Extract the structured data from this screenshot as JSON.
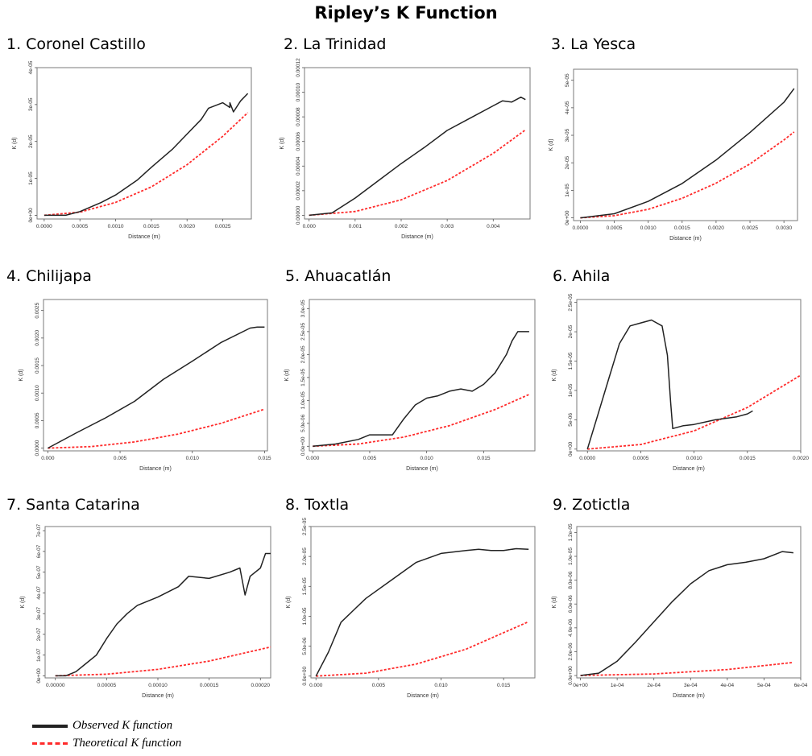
{
  "figure_title": "Ripley’s K Function",
  "legend": {
    "observed": "Observed K function",
    "theoretical": "Theoretical K function",
    "observed_color": "#222222",
    "theoretical_color": "#ff2b2b"
  },
  "chart_data": [
    {
      "type": "line",
      "title": "1. Coronel Castillo",
      "xlabel": "Distance (m)",
      "ylabel": "K (d)",
      "xlim": [
        -0.0001,
        0.0029
      ],
      "ylim": [
        -1e-06,
        4e-05
      ],
      "xticks": [
        0,
        0.0005,
        0.001,
        0.0015,
        0.002,
        0.0025
      ],
      "xtick_labels": [
        "0.0000",
        "0.0005",
        "0.0010",
        "0.0015",
        "0.0020",
        "0.0025"
      ],
      "yticks": [
        0,
        1e-05,
        2e-05,
        3e-05,
        4e-05
      ],
      "ytick_labels": [
        "0e+00",
        "1e-05",
        "2e-05",
        "3e-05",
        "4e-05"
      ],
      "series": [
        {
          "name": "Observed K function",
          "x": [
            0,
            0.0003,
            0.0005,
            0.0008,
            0.001,
            0.0013,
            0.0015,
            0.0018,
            0.002,
            0.0022,
            0.0023,
            0.0025,
            0.0026,
            0.0026,
            0.00265,
            0.00275,
            0.00285
          ],
          "y": [
            0,
            0,
            1e-06,
            3.5e-06,
            5.5e-06,
            9.5e-06,
            1.3e-05,
            1.8e-05,
            2.2e-05,
            2.6e-05,
            2.9e-05,
            3.05e-05,
            2.92e-05,
            3.05e-05,
            2.8e-05,
            3.1e-05,
            3.3e-05
          ]
        },
        {
          "name": "Theoretical K function",
          "x": [
            0,
            0.0005,
            0.001,
            0.0015,
            0.002,
            0.0025,
            0.00285
          ],
          "y": [
            0,
            8.5e-07,
            3.5e-06,
            7.7e-06,
            1.37e-05,
            2.14e-05,
            2.78e-05
          ]
        }
      ]
    },
    {
      "type": "line",
      "title": "2. La Trinidad",
      "xlabel": "Distance (m)",
      "ylabel": "K (d)",
      "xlim": [
        -0.0001,
        0.0048
      ],
      "ylim": [
        -3e-06,
        0.00012
      ],
      "xticks": [
        0,
        0.001,
        0.002,
        0.003,
        0.004
      ],
      "xtick_labels": [
        "0.000",
        "0.001",
        "0.002",
        "0.003",
        "0.004"
      ],
      "yticks": [
        0,
        2e-05,
        4e-05,
        6e-05,
        8e-05,
        0.0001,
        0.00012
      ],
      "ytick_labels": [
        "0.00000",
        "0.00002",
        "0.00004",
        "0.00006",
        "0.00008",
        "0.00010",
        "0.00012"
      ],
      "series": [
        {
          "name": "Observed K function",
          "x": [
            0,
            0.0005,
            0.001,
            0.0015,
            0.002,
            0.0025,
            0.003,
            0.0035,
            0.004,
            0.0042,
            0.0044,
            0.0046,
            0.0047
          ],
          "y": [
            0,
            2e-06,
            1.4e-05,
            2.8e-05,
            4.2e-05,
            5.5e-05,
            6.9e-05,
            7.9e-05,
            8.9e-05,
            9.3e-05,
            9.2e-05,
            9.6e-05,
            9.4e-05
          ]
        },
        {
          "name": "Theoretical K function",
          "x": [
            0,
            0.001,
            0.002,
            0.003,
            0.004,
            0.0047
          ],
          "y": [
            0,
            3.1e-06,
            1.26e-05,
            2.83e-05,
            5.03e-05,
            6.94e-05
          ]
        }
      ]
    },
    {
      "type": "line",
      "title": "3. La Yesca",
      "xlabel": "Distance (m)",
      "ylabel": "K (d)",
      "xlim": [
        -0.0001,
        0.0032
      ],
      "ylim": [
        -1e-06,
        5.4e-05
      ],
      "xticks": [
        0,
        0.0005,
        0.001,
        0.0015,
        0.002,
        0.0025,
        0.003
      ],
      "xtick_labels": [
        "0.0000",
        "0.0005",
        "0.0010",
        "0.0015",
        "0.0020",
        "0.0025",
        "0.0030"
      ],
      "yticks": [
        0,
        1e-05,
        2e-05,
        3e-05,
        4e-05,
        5e-05
      ],
      "ytick_labels": [
        "0e+00",
        "1e-05",
        "2e-05",
        "3e-05",
        "4e-05",
        "5e-05"
      ],
      "series": [
        {
          "name": "Observed K function",
          "x": [
            0,
            0.0005,
            0.001,
            0.0015,
            0.002,
            0.0025,
            0.003,
            0.00315
          ],
          "y": [
            0,
            1.5e-06,
            6e-06,
            1.25e-05,
            2.1e-05,
            3.1e-05,
            4.2e-05,
            4.7e-05
          ]
        },
        {
          "name": "Theoretical K function",
          "x": [
            0,
            0.0005,
            0.001,
            0.0015,
            0.002,
            0.0025,
            0.003,
            0.00315
          ],
          "y": [
            0,
            7.9e-07,
            3.1e-06,
            7.1e-06,
            1.26e-05,
            1.96e-05,
            2.83e-05,
            3.12e-05
          ]
        }
      ]
    },
    {
      "type": "line",
      "title": "4. Chilijapa",
      "xlabel": "Distance (m)",
      "ylabel": "K (d)",
      "xlim": [
        -0.0003,
        0.0152
      ],
      "ylim": [
        -5e-05,
        0.0027
      ],
      "xticks": [
        0,
        0.005,
        0.01,
        0.015
      ],
      "xtick_labels": [
        "0.000",
        "0.005",
        "0.010",
        "0.015"
      ],
      "yticks": [
        0,
        0.0005,
        0.001,
        0.0015,
        0.002,
        0.0025
      ],
      "ytick_labels": [
        "0.0000",
        "0.0005",
        "0.0010",
        "0.0015",
        "0.0020",
        "0.0025"
      ],
      "series": [
        {
          "name": "Observed K function",
          "x": [
            0,
            0.002,
            0.004,
            0.006,
            0.008,
            0.01,
            0.012,
            0.014,
            0.0145,
            0.015
          ],
          "y": [
            0,
            0.00028,
            0.00055,
            0.00085,
            0.00125,
            0.00158,
            0.00192,
            0.00218,
            0.0022,
            0.0022
          ]
        },
        {
          "name": "Theoretical K function",
          "x": [
            0,
            0.003,
            0.006,
            0.009,
            0.012,
            0.015
          ],
          "y": [
            0,
            2.8e-05,
            0.000113,
            0.000254,
            0.000452,
            0.000707
          ]
        }
      ]
    },
    {
      "type": "line",
      "title": "5. Ahuacatlán",
      "xlabel": "Distance (m)",
      "ylabel": "K (d)",
      "xlim": [
        -0.0003,
        0.0195
      ],
      "ylim": [
        -1e-06,
        3.2e-05
      ],
      "xticks": [
        0,
        0.005,
        0.01,
        0.015
      ],
      "xtick_labels": [
        "0.000",
        "0.005",
        "0.010",
        "0.015"
      ],
      "yticks": [
        0,
        5e-06,
        1e-05,
        1.5e-05,
        2e-05,
        2.5e-05,
        3e-05
      ],
      "ytick_labels": [
        "0.0e+00",
        "5.0e-06",
        "1.0e-05",
        "1.5e-05",
        "2.0e-05",
        "2.5e-05",
        "3.0e-05"
      ],
      "series": [
        {
          "name": "Observed K function",
          "x": [
            0,
            0.002,
            0.004,
            0.005,
            0.007,
            0.008,
            0.009,
            0.01,
            0.011,
            0.012,
            0.013,
            0.014,
            0.015,
            0.016,
            0.017,
            0.0175,
            0.018,
            0.019
          ],
          "y": [
            0,
            5e-07,
            1.5e-06,
            2.5e-06,
            2.5e-06,
            6e-06,
            9e-06,
            1.05e-05,
            1.1e-05,
            1.2e-05,
            1.25e-05,
            1.2e-05,
            1.35e-05,
            1.6e-05,
            2e-05,
            2.3e-05,
            2.5e-05,
            2.5e-05
          ]
        },
        {
          "name": "Theoretical K function",
          "x": [
            0,
            0.004,
            0.008,
            0.012,
            0.016,
            0.019
          ],
          "y": [
            0,
            5e-07,
            2e-06,
            4.5e-06,
            8e-06,
            1.13e-05
          ]
        }
      ]
    },
    {
      "type": "line",
      "title": "6. Ahila",
      "xlabel": "Distance (m)",
      "ylabel": "K (d)",
      "xlim": [
        -0.0001,
        0.002
      ],
      "ylim": [
        -3e-07,
        2.55e-05
      ],
      "xticks": [
        0,
        0.0005,
        0.001,
        0.0015,
        0.002
      ],
      "xtick_labels": [
        "0.0000",
        "0.0005",
        "0.0010",
        "0.0015",
        "0.0020"
      ],
      "yticks": [
        0,
        5e-06,
        1e-05,
        1.5e-05,
        2e-05,
        2.5e-05
      ],
      "ytick_labels": [
        "0e+00",
        "5e-06",
        "1e-05",
        "1.5e-05",
        "2e-05",
        "2.5e-05"
      ],
      "series": [
        {
          "name": "Observed K function",
          "x": [
            0,
            0.0001,
            0.0002,
            0.0003,
            0.0004,
            0.0005,
            0.0006,
            0.0007,
            0.00075,
            0.00078,
            0.0008,
            0.0009,
            0.001,
            0.0012,
            0.0014,
            0.0015,
            0.00155
          ],
          "y": [
            0,
            6e-06,
            1.2e-05,
            1.8e-05,
            2.1e-05,
            2.15e-05,
            2.2e-05,
            2.1e-05,
            1.6e-05,
            8e-06,
            3.5e-06,
            4e-06,
            4.2e-06,
            5e-06,
            5.5e-06,
            6e-06,
            6.5e-06
          ]
        },
        {
          "name": "Theoretical K function",
          "x": [
            0,
            0.0005,
            0.001,
            0.0015,
            0.002
          ],
          "y": [
            0,
            7.9e-07,
            3.1e-06,
            7.1e-06,
            1.26e-05
          ]
        }
      ]
    },
    {
      "type": "line",
      "title": "7. Santa Catarina",
      "xlabel": "Distance (m)",
      "ylabel": "K (d)",
      "xlim": [
        -1e-05,
        0.00021
      ],
      "ylim": [
        -1e-08,
        7.2e-07
      ],
      "xticks": [
        0,
        5e-05,
        0.0001,
        0.00015,
        0.0002
      ],
      "xtick_labels": [
        "0.00000",
        "0.00005",
        "0.00010",
        "0.00015",
        "0.00020"
      ],
      "yticks": [
        0,
        1e-07,
        2e-07,
        3e-07,
        4e-07,
        5e-07,
        6e-07,
        7e-07
      ],
      "ytick_labels": [
        "0e+00",
        "1e-07",
        "2e-07",
        "3e-07",
        "4e-07",
        "5e-07",
        "6e-07",
        "7e-07"
      ],
      "series": [
        {
          "name": "Observed K function",
          "x": [
            0,
            1e-05,
            2e-05,
            3e-05,
            4e-05,
            5e-05,
            6e-05,
            7e-05,
            8e-05,
            0.0001,
            0.00012,
            0.00013,
            0.00015,
            0.00017,
            0.00018,
            0.000185,
            0.00019,
            0.0002,
            0.000205,
            0.00021
          ],
          "y": [
            0,
            0,
            2e-08,
            6e-08,
            1e-07,
            1.8e-07,
            2.5e-07,
            3e-07,
            3.4e-07,
            3.8e-07,
            4.3e-07,
            4.8e-07,
            4.7e-07,
            5e-07,
            5.2e-07,
            3.9e-07,
            4.8e-07,
            5.2e-07,
            5.9e-07,
            5.9e-07
          ]
        },
        {
          "name": "Theoretical K function",
          "x": [
            0,
            5e-05,
            0.0001,
            0.00015,
            0.00021
          ],
          "y": [
            0,
            7.9e-09,
            3.1e-08,
            7.1e-08,
            1.39e-07
          ]
        }
      ]
    },
    {
      "type": "line",
      "title": "8. Toxtla",
      "xlabel": "Distance (m)",
      "ylabel": "K (d)",
      "xlim": [
        -0.0004,
        0.0175
      ],
      "ylim": [
        -3e-07,
        2.5e-05
      ],
      "xticks": [
        0,
        0.005,
        0.01,
        0.015
      ],
      "xtick_labels": [
        "0.000",
        "0.005",
        "0.010",
        "0.015"
      ],
      "yticks": [
        0,
        5e-06,
        1e-05,
        1.5e-05,
        2e-05,
        2.5e-05
      ],
      "ytick_labels": [
        "0.0e+00",
        "5.0e-06",
        "1.0e-05",
        "1.5e-05",
        "2.0e-05",
        "2.5e-05"
      ],
      "series": [
        {
          "name": "Observed K function",
          "x": [
            0,
            0.001,
            0.002,
            0.003,
            0.004,
            0.006,
            0.008,
            0.01,
            0.012,
            0.013,
            0.014,
            0.015,
            0.016,
            0.017
          ],
          "y": [
            0,
            4e-06,
            9e-06,
            1.1e-05,
            1.3e-05,
            1.6e-05,
            1.9e-05,
            2.05e-05,
            2.1e-05,
            2.12e-05,
            2.1e-05,
            2.1e-05,
            2.13e-05,
            2.12e-05
          ]
        },
        {
          "name": "Theoretical K function",
          "x": [
            0,
            0.004,
            0.008,
            0.012,
            0.017
          ],
          "y": [
            0,
            5e-07,
            2e-06,
            4.5e-06,
            9.1e-06
          ]
        }
      ]
    },
    {
      "type": "line",
      "title": "9. Zotictla",
      "xlabel": "Distance (m)",
      "ylabel": "K (d)",
      "xlim": [
        -1e-05,
        0.0006
      ],
      "ylim": [
        -2e-07,
        1.25e-05
      ],
      "xticks": [
        0,
        0.0001,
        0.0002,
        0.0003,
        0.0004,
        0.0005,
        0.0006
      ],
      "xtick_labels": [
        "0e+00",
        "1e-04",
        "2e-04",
        "3e-04",
        "4e-04",
        "5e-04",
        "6e-04"
      ],
      "yticks": [
        0,
        2e-06,
        4e-06,
        6e-06,
        8e-06,
        1e-05,
        1.2e-05
      ],
      "ytick_labels": [
        "0.0e+00",
        "2.0e-06",
        "4.0e-06",
        "6.0e-06",
        "8.0e-06",
        "1.0e-05",
        "1.2e-05"
      ],
      "series": [
        {
          "name": "Observed K function",
          "x": [
            0,
            5e-05,
            0.0001,
            0.00015,
            0.0002,
            0.00025,
            0.0003,
            0.00035,
            0.0004,
            0.00045,
            0.0005,
            0.00055,
            0.00058
          ],
          "y": [
            0,
            2e-07,
            1.2e-06,
            2.8e-06,
            4.5e-06,
            6.2e-06,
            7.7e-06,
            8.8e-06,
            9.3e-06,
            9.5e-06,
            9.8e-06,
            1.04e-05,
            1.03e-05
          ]
        },
        {
          "name": "Theoretical K function",
          "x": [
            0,
            0.0002,
            0.0004,
            0.00058
          ],
          "y": [
            0,
            1.3e-07,
            5e-07,
            1.1e-06
          ]
        }
      ]
    }
  ]
}
